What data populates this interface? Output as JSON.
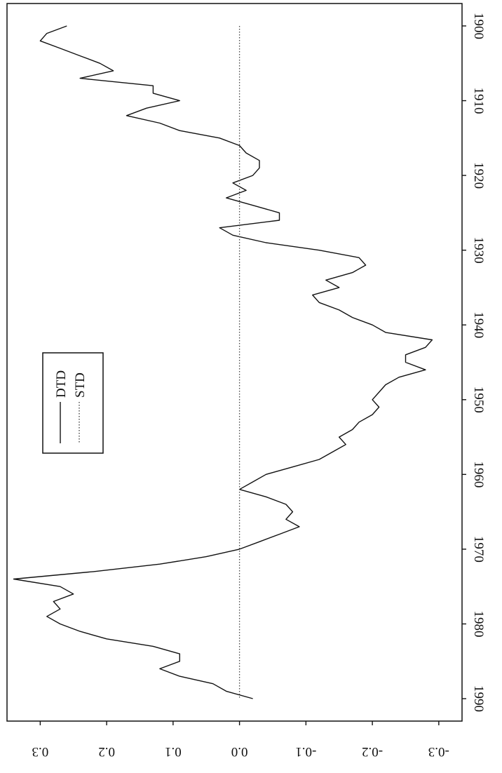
{
  "chart_data": {
    "type": "line",
    "orientation": "rotated 90 degrees (time axis vertical, values horizontal, labels upside-down)",
    "x_ticks": [
      1900,
      1910,
      1920,
      1930,
      1940,
      1950,
      1960,
      1970,
      1980,
      1990
    ],
    "y_ticks": [
      0.3,
      0.2,
      0.1,
      0.0,
      -0.1,
      -0.2,
      -0.3
    ],
    "y_tick_labels": [
      "0.3",
      "0.2",
      "0.1",
      "0.0",
      "-0.1",
      "-0.2",
      "-0.3"
    ],
    "x_tick_labels": [
      "1900",
      "1910",
      "1920",
      "1930",
      "1940",
      "1950",
      "1960",
      "1970",
      "1980",
      "1990"
    ],
    "xlim": [
      1897,
      1993
    ],
    "ylim": [
      -0.335,
      0.35
    ],
    "grid": false,
    "legend_position": "upper area (left side when rotated)",
    "legend": [
      {
        "label": "DTD",
        "style": "solid"
      },
      {
        "label": "STD",
        "style": "dotted"
      }
    ],
    "series": [
      {
        "name": "DTD",
        "style": "solid",
        "color": "#111111",
        "points": [
          [
            1900,
            0.26
          ],
          [
            1901,
            0.29
          ],
          [
            1902,
            0.3
          ],
          [
            1903,
            0.27
          ],
          [
            1904,
            0.24
          ],
          [
            1905,
            0.21
          ],
          [
            1906,
            0.19
          ],
          [
            1907,
            0.24
          ],
          [
            1908,
            0.13
          ],
          [
            1909,
            0.13
          ],
          [
            1910,
            0.09
          ],
          [
            1911,
            0.14
          ],
          [
            1912,
            0.17
          ],
          [
            1913,
            0.12
          ],
          [
            1914,
            0.09
          ],
          [
            1915,
            0.03
          ],
          [
            1916,
            0.0
          ],
          [
            1917,
            -0.01
          ],
          [
            1918,
            -0.03
          ],
          [
            1919,
            -0.03
          ],
          [
            1920,
            -0.02
          ],
          [
            1921,
            0.01
          ],
          [
            1922,
            -0.01
          ],
          [
            1923,
            0.02
          ],
          [
            1924,
            -0.02
          ],
          [
            1925,
            -0.06
          ],
          [
            1926,
            -0.06
          ],
          [
            1927,
            0.03
          ],
          [
            1928,
            0.01
          ],
          [
            1929,
            -0.04
          ],
          [
            1930,
            -0.12
          ],
          [
            1931,
            -0.18
          ],
          [
            1932,
            -0.19
          ],
          [
            1933,
            -0.17
          ],
          [
            1934,
            -0.13
          ],
          [
            1935,
            -0.15
          ],
          [
            1936,
            -0.11
          ],
          [
            1937,
            -0.12
          ],
          [
            1938,
            -0.15
          ],
          [
            1939,
            -0.17
          ],
          [
            1940,
            -0.2
          ],
          [
            1941,
            -0.22
          ],
          [
            1942,
            -0.29
          ],
          [
            1943,
            -0.28
          ],
          [
            1944,
            -0.25
          ],
          [
            1945,
            -0.25
          ],
          [
            1946,
            -0.28
          ],
          [
            1947,
            -0.24
          ],
          [
            1948,
            -0.22
          ],
          [
            1949,
            -0.21
          ],
          [
            1950,
            -0.2
          ],
          [
            1951,
            -0.21
          ],
          [
            1952,
            -0.2
          ],
          [
            1953,
            -0.18
          ],
          [
            1954,
            -0.17
          ],
          [
            1955,
            -0.15
          ],
          [
            1956,
            -0.16
          ],
          [
            1957,
            -0.14
          ],
          [
            1958,
            -0.12
          ],
          [
            1959,
            -0.08
          ],
          [
            1960,
            -0.04
          ],
          [
            1961,
            -0.02
          ],
          [
            1962,
            0.0
          ],
          [
            1963,
            -0.04
          ],
          [
            1964,
            -0.07
          ],
          [
            1965,
            -0.08
          ],
          [
            1966,
            -0.07
          ],
          [
            1967,
            -0.09
          ],
          [
            1968,
            -0.06
          ],
          [
            1969,
            -0.03
          ],
          [
            1970,
            0.0
          ],
          [
            1971,
            0.05
          ],
          [
            1972,
            0.12
          ],
          [
            1973,
            0.22
          ],
          [
            1974,
            0.34
          ],
          [
            1975,
            0.27
          ],
          [
            1976,
            0.25
          ],
          [
            1977,
            0.28
          ],
          [
            1978,
            0.27
          ],
          [
            1979,
            0.29
          ],
          [
            1980,
            0.27
          ],
          [
            1981,
            0.24
          ],
          [
            1982,
            0.2
          ],
          [
            1983,
            0.13
          ],
          [
            1984,
            0.09
          ],
          [
            1985,
            0.09
          ],
          [
            1986,
            0.12
          ],
          [
            1987,
            0.09
          ],
          [
            1988,
            0.04
          ],
          [
            1989,
            0.02
          ],
          [
            1990,
            -0.02
          ]
        ]
      },
      {
        "name": "STD",
        "style": "dotted",
        "color": "#444444",
        "points": [
          [
            1900,
            0.0
          ],
          [
            1990,
            0.0
          ]
        ]
      }
    ]
  }
}
